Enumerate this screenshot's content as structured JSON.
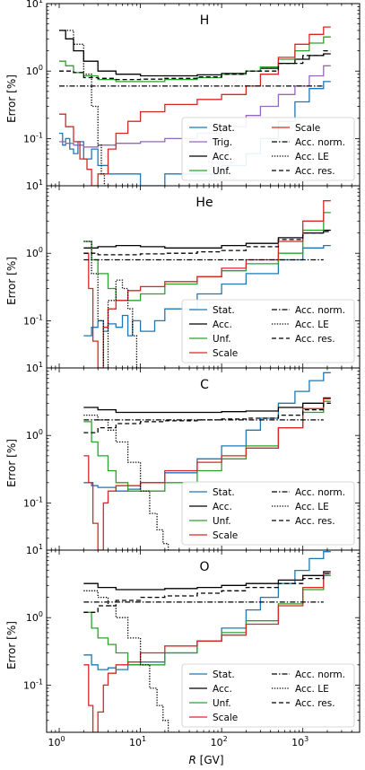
{
  "figure": {
    "xlabel_italic": "R",
    "xlabel_unit": " [GV]",
    "ylabel": "Error [%]"
  },
  "legend_order": [
    "Stat.",
    "Trig.",
    "Acc.",
    "Unf.",
    "Scale",
    "Acc. norm.",
    "Acc. LE",
    "Acc. res."
  ],
  "chart_data": [
    {
      "type": "line",
      "step": true,
      "title": "H",
      "xscale": "log",
      "yscale": "log",
      "xlim": [
        0.7,
        5000
      ],
      "ylim": [
        0.02,
        10
      ],
      "legend": "lower-right",
      "series": [
        {
          "name": "Stat.",
          "color": "#1f77b4",
          "style": "solid",
          "x": [
            1.0,
            1.1,
            1.2,
            1.35,
            1.5,
            1.7,
            2.0,
            2.5,
            3.0,
            4.0,
            5.0,
            7.0,
            10,
            20,
            50,
            100,
            200,
            300,
            500,
            800,
            1200,
            1800
          ],
          "y": [
            0.12,
            0.08,
            0.1,
            0.07,
            0.06,
            0.09,
            0.05,
            0.07,
            0.04,
            0.03,
            0.03,
            0.03,
            0.02,
            0.03,
            0.03,
            0.04,
            0.06,
            0.1,
            0.18,
            0.35,
            0.55,
            0.7
          ]
        },
        {
          "name": "Trig.",
          "color": "#9467bd",
          "style": "solid",
          "x": [
            1.0,
            1.2,
            1.5,
            2.0,
            3.0,
            5.0,
            10,
            20,
            50,
            100,
            200,
            300,
            500,
            800,
            1200,
            1800
          ],
          "y": [
            0.09,
            0.085,
            0.08,
            0.075,
            0.08,
            0.085,
            0.09,
            0.1,
            0.12,
            0.15,
            0.22,
            0.3,
            0.45,
            0.6,
            0.85,
            1.2
          ]
        },
        {
          "name": "Acc.",
          "color": "#000000",
          "style": "solid",
          "x": [
            1.0,
            1.2,
            1.5,
            2.0,
            3.0,
            5.0,
            10,
            20,
            50,
            100,
            200,
            300,
            500,
            800,
            1200,
            1800
          ],
          "y": [
            4.0,
            3.0,
            2.0,
            1.4,
            1.0,
            0.9,
            0.85,
            0.85,
            0.88,
            0.92,
            1.0,
            1.1,
            1.3,
            1.5,
            1.7,
            1.8
          ]
        },
        {
          "name": "Unf.",
          "color": "#2ca02c",
          "style": "solid",
          "x": [
            1.0,
            1.2,
            1.5,
            2.0,
            3.0,
            5.0,
            10,
            20,
            50,
            100,
            200,
            300,
            500,
            800,
            1200,
            1800
          ],
          "y": [
            1.4,
            1.2,
            0.95,
            0.85,
            0.75,
            0.7,
            0.7,
            0.75,
            0.8,
            0.9,
            1.0,
            1.15,
            1.5,
            2.0,
            2.6,
            3.2
          ]
        },
        {
          "name": "Scale",
          "color": "#d62728",
          "style": "solid",
          "x": [
            1.0,
            1.2,
            1.5,
            1.8,
            2.2,
            2.5,
            3.0,
            4.0,
            5.0,
            7.0,
            10,
            20,
            50,
            100,
            200,
            300,
            500,
            800,
            1200,
            1800
          ],
          "y": [
            0.23,
            0.15,
            0.09,
            0.05,
            0.035,
            0.02,
            0.03,
            0.07,
            0.12,
            0.18,
            0.25,
            0.32,
            0.38,
            0.45,
            0.6,
            0.9,
            1.6,
            2.5,
            3.5,
            4.5
          ]
        },
        {
          "name": "Acc. norm.",
          "color": "#000000",
          "style": "dashdot",
          "x": [
            1.0,
            1800
          ],
          "y": [
            0.6,
            0.6
          ]
        },
        {
          "name": "Acc. LE",
          "color": "#000000",
          "style": "dotted",
          "x": [
            1.0,
            1.5,
            2.0,
            2.5,
            3.0,
            3.3,
            3.6
          ],
          "y": [
            4.0,
            2.5,
            0.9,
            0.3,
            0.08,
            0.03,
            0.02
          ]
        },
        {
          "name": "Acc. res.",
          "color": "#000000",
          "style": "dashed",
          "x": [
            1.0,
            1.5,
            2.0,
            3.0,
            5.0,
            10,
            20,
            50,
            100,
            200,
            500,
            1000,
            1800
          ],
          "y": [
            1.0,
            0.95,
            0.8,
            0.78,
            0.75,
            0.76,
            0.78,
            0.82,
            0.9,
            1.0,
            1.3,
            1.7,
            2.0
          ]
        }
      ]
    },
    {
      "type": "line",
      "step": true,
      "title": "He",
      "xscale": "log",
      "yscale": "log",
      "xlim": [
        0.7,
        5000
      ],
      "ylim": [
        0.02,
        10
      ],
      "legend": "lower-right",
      "series": [
        {
          "name": "Stat.",
          "color": "#1f77b4",
          "style": "solid",
          "x": [
            2.0,
            2.5,
            3.0,
            3.5,
            4.0,
            5.0,
            6.0,
            7.0,
            8.0,
            10,
            15,
            20,
            50,
            100,
            200,
            500,
            1000,
            1800
          ],
          "y": [
            0.06,
            0.08,
            0.1,
            0.07,
            0.09,
            0.08,
            0.12,
            0.06,
            0.1,
            0.07,
            0.1,
            0.15,
            0.25,
            0.35,
            0.5,
            0.8,
            1.2,
            1.3
          ]
        },
        {
          "name": "Acc.",
          "color": "#000000",
          "style": "solid",
          "x": [
            2.0,
            3.0,
            5.0,
            10,
            20,
            50,
            100,
            200,
            500,
            1000,
            1800
          ],
          "y": [
            1.2,
            1.25,
            1.3,
            1.25,
            1.2,
            1.2,
            1.3,
            1.4,
            1.7,
            2.0,
            2.2
          ]
        },
        {
          "name": "Unf.",
          "color": "#2ca02c",
          "style": "solid",
          "x": [
            2.0,
            2.5,
            3.0,
            4.0,
            5.0,
            7.0,
            10,
            20,
            50,
            100,
            200,
            500,
            1000,
            1800
          ],
          "y": [
            1.5,
            0.8,
            0.5,
            0.3,
            0.2,
            0.2,
            0.25,
            0.35,
            0.45,
            0.55,
            0.7,
            1.0,
            2.2,
            4.0
          ]
        },
        {
          "name": "Scale",
          "color": "#d62728",
          "style": "solid",
          "x": [
            2.0,
            2.3,
            2.6,
            3.0,
            3.5,
            4.0,
            5.0,
            7.0,
            10,
            20,
            50,
            100,
            200,
            500,
            1000,
            1800
          ],
          "y": [
            1.0,
            0.3,
            0.05,
            0.02,
            0.08,
            0.15,
            0.2,
            0.28,
            0.32,
            0.38,
            0.45,
            0.6,
            0.8,
            1.5,
            3.0,
            6.0
          ]
        },
        {
          "name": "Acc. norm.",
          "color": "#000000",
          "style": "dashdot",
          "x": [
            2.0,
            1800
          ],
          "y": [
            0.8,
            0.8
          ]
        },
        {
          "name": "Acc. LE",
          "color": "#000000",
          "style": "dotted",
          "x": [
            2.0,
            2.5,
            3.0,
            3.5,
            4.0,
            5.0,
            6.0,
            7.0,
            8.0,
            9.0
          ],
          "y": [
            1.5,
            0.5,
            0.1,
            0.02,
            0.2,
            0.4,
            0.3,
            0.15,
            0.06,
            0.02
          ]
        },
        {
          "name": "Acc. res.",
          "color": "#000000",
          "style": "dashed",
          "x": [
            2.0,
            3.0,
            5.0,
            10,
            20,
            50,
            100,
            200,
            500,
            1000,
            1800
          ],
          "y": [
            1.0,
            0.95,
            0.95,
            0.98,
            1.0,
            1.05,
            1.1,
            1.25,
            1.6,
            2.0,
            2.1
          ]
        }
      ]
    },
    {
      "type": "line",
      "step": true,
      "title": "C",
      "xscale": "log",
      "yscale": "log",
      "xlim": [
        0.7,
        5000
      ],
      "ylim": [
        0.02,
        10
      ],
      "legend": "lower-right",
      "series": [
        {
          "name": "Stat.",
          "color": "#1f77b4",
          "style": "solid",
          "x": [
            2.0,
            2.5,
            3.0,
            4.0,
            5.0,
            7.0,
            10,
            20,
            50,
            100,
            200,
            300,
            500,
            800,
            1200,
            1800
          ],
          "y": [
            0.2,
            0.18,
            0.17,
            0.17,
            0.15,
            0.16,
            0.2,
            0.28,
            0.45,
            0.7,
            1.2,
            1.8,
            3.0,
            4.5,
            6.5,
            8.5
          ]
        },
        {
          "name": "Acc.",
          "color": "#000000",
          "style": "solid",
          "x": [
            2.0,
            3.0,
            5.0,
            10,
            20,
            50,
            100,
            200,
            500,
            1000,
            1800
          ],
          "y": [
            2.6,
            2.4,
            2.2,
            2.2,
            2.2,
            2.2,
            2.25,
            2.3,
            2.6,
            3.0,
            3.6
          ]
        },
        {
          "name": "Unf.",
          "color": "#2ca02c",
          "style": "solid",
          "x": [
            2.0,
            2.5,
            3.0,
            4.0,
            5.0,
            7.0,
            10,
            20,
            50,
            100,
            200,
            500,
            1000,
            1800
          ],
          "y": [
            1.6,
            0.8,
            0.5,
            0.3,
            0.2,
            0.15,
            0.15,
            0.2,
            0.3,
            0.45,
            0.7,
            1.3,
            2.2,
            3.2
          ]
        },
        {
          "name": "Scale",
          "color": "#d62728",
          "style": "solid",
          "x": [
            2.0,
            2.3,
            2.6,
            3.0,
            3.5,
            4.0,
            5.0,
            7.0,
            10,
            20,
            50,
            100,
            200,
            500,
            1000,
            1800
          ],
          "y": [
            0.5,
            0.2,
            0.05,
            0.02,
            0.1,
            0.15,
            0.18,
            0.18,
            0.2,
            0.3,
            0.4,
            0.5,
            0.65,
            1.3,
            2.5,
            3.5
          ]
        },
        {
          "name": "Acc. norm.",
          "color": "#000000",
          "style": "dashdot",
          "x": [
            2.0,
            1800
          ],
          "y": [
            1.7,
            1.7
          ]
        },
        {
          "name": "Acc. LE",
          "color": "#000000",
          "style": "dotted",
          "x": [
            2.0,
            3.0,
            4.0,
            5.0,
            7.0,
            10,
            13,
            16,
            19,
            22
          ],
          "y": [
            2.0,
            1.7,
            1.2,
            0.8,
            0.4,
            0.15,
            0.07,
            0.04,
            0.025,
            0.02
          ]
        },
        {
          "name": "Acc. res.",
          "color": "#000000",
          "style": "dashed",
          "x": [
            2.0,
            3.0,
            5.0,
            10,
            20,
            50,
            100,
            200,
            500,
            1000,
            1800
          ],
          "y": [
            1.1,
            1.3,
            1.5,
            1.6,
            1.65,
            1.7,
            1.75,
            1.8,
            2.0,
            2.4,
            3.0
          ]
        }
      ]
    },
    {
      "type": "line",
      "step": true,
      "title": "O",
      "xscale": "log",
      "yscale": "log",
      "xlim": [
        0.7,
        5000
      ],
      "ylim": [
        0.02,
        10
      ],
      "legend": "lower-right",
      "series": [
        {
          "name": "Stat.",
          "color": "#1f77b4",
          "style": "solid",
          "x": [
            2.0,
            2.5,
            3.0,
            4.0,
            5.0,
            7.0,
            10,
            20,
            50,
            100,
            200,
            300,
            500,
            800,
            1200,
            1800
          ],
          "y": [
            0.28,
            0.2,
            0.17,
            0.18,
            0.17,
            0.2,
            0.22,
            0.3,
            0.45,
            0.7,
            1.3,
            2.0,
            3.2,
            5.0,
            7.5,
            9.5
          ]
        },
        {
          "name": "Acc.",
          "color": "#000000",
          "style": "solid",
          "x": [
            2.0,
            3.0,
            5.0,
            10,
            20,
            50,
            100,
            200,
            500,
            1000,
            1800
          ],
          "y": [
            3.2,
            2.8,
            2.6,
            2.6,
            2.7,
            2.8,
            3.0,
            3.2,
            3.6,
            4.2,
            4.8
          ]
        },
        {
          "name": "Unf.",
          "color": "#2ca02c",
          "style": "solid",
          "x": [
            2.0,
            2.5,
            3.0,
            4.0,
            5.0,
            7.0,
            10,
            20,
            50,
            100,
            200,
            500,
            1000,
            1800
          ],
          "y": [
            1.2,
            0.7,
            0.5,
            0.4,
            0.3,
            0.2,
            0.2,
            0.3,
            0.45,
            0.6,
            0.9,
            1.6,
            2.6,
            4.2
          ]
        },
        {
          "name": "Scale",
          "color": "#d62728",
          "style": "solid",
          "x": [
            2.0,
            2.3,
            2.6,
            3.0,
            3.5,
            4.0,
            5.0,
            7.0,
            10,
            20,
            50,
            100,
            200,
            500,
            1000,
            1800
          ],
          "y": [
            0.2,
            0.05,
            0.02,
            0.04,
            0.1,
            0.15,
            0.2,
            0.22,
            0.3,
            0.38,
            0.45,
            0.55,
            0.8,
            1.5,
            2.8,
            4.5
          ]
        },
        {
          "name": "Acc. norm.",
          "color": "#000000",
          "style": "dashdot",
          "x": [
            2.0,
            1800
          ],
          "y": [
            1.7,
            1.7
          ]
        },
        {
          "name": "Acc. LE",
          "color": "#000000",
          "style": "dotted",
          "x": [
            2.0,
            3.0,
            4.0,
            5.0,
            7.0,
            10,
            13,
            16,
            19,
            22
          ],
          "y": [
            2.5,
            2.0,
            1.5,
            1.0,
            0.5,
            0.2,
            0.09,
            0.05,
            0.03,
            0.02
          ]
        },
        {
          "name": "Acc. res.",
          "color": "#000000",
          "style": "dashed",
          "x": [
            2.0,
            3.0,
            5.0,
            10,
            20,
            50,
            100,
            200,
            500,
            1000,
            1800
          ],
          "y": [
            1.2,
            1.5,
            1.8,
            2.0,
            2.1,
            2.3,
            2.5,
            2.8,
            3.2,
            3.8,
            4.5
          ]
        }
      ]
    }
  ]
}
